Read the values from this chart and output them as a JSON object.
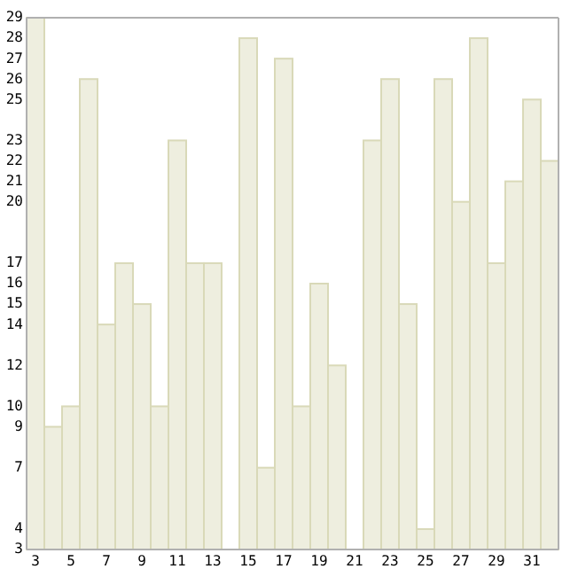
{
  "chart_data": {
    "type": "bar",
    "x": [
      3,
      4,
      5,
      6,
      7,
      8,
      9,
      10,
      11,
      12,
      13,
      14,
      15,
      16,
      17,
      18,
      19,
      20,
      21,
      22,
      23,
      24,
      25,
      26,
      27,
      28,
      29,
      30,
      31,
      32
    ],
    "values": [
      29,
      9,
      10,
      26,
      14,
      17,
      15,
      10,
      23,
      17,
      17,
      3,
      28,
      7,
      27,
      10,
      16,
      12,
      3,
      23,
      26,
      15,
      4,
      26,
      20,
      28,
      17,
      21,
      25,
      22
    ],
    "color": "#eeeedf",
    "xlim": [
      2.5,
      32.5
    ],
    "xticks": [
      3,
      5,
      7,
      9,
      11,
      13,
      15,
      17,
      19,
      21,
      23,
      25,
      27,
      29,
      31
    ],
    "ylim": [
      3,
      29
    ],
    "yticks": [
      3,
      4,
      7,
      9,
      10,
      12,
      14,
      15,
      16,
      17,
      20,
      21,
      22,
      23,
      25,
      26,
      27,
      28,
      29
    ],
    "grid": false
  }
}
